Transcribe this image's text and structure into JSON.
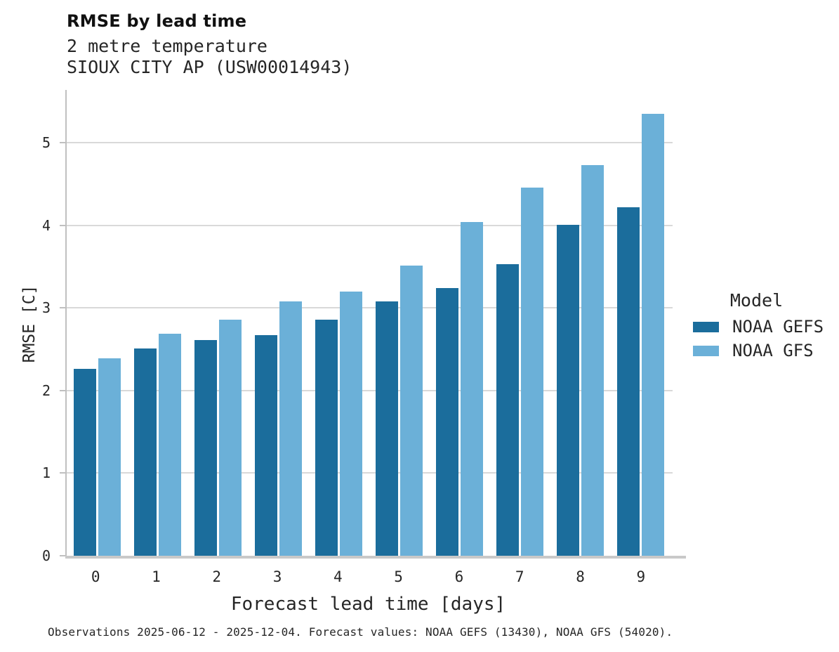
{
  "header": {
    "title": "RMSE by lead time",
    "subtitle_line1": "2 metre temperature",
    "subtitle_line2": "SIOUX CITY AP (USW00014943)"
  },
  "chart_data": {
    "type": "bar",
    "categories": [
      "0",
      "1",
      "2",
      "3",
      "4",
      "5",
      "6",
      "7",
      "8",
      "9"
    ],
    "series": [
      {
        "name": "NOAA GEFS",
        "color": "#1b6d9c",
        "values": [
          2.26,
          2.51,
          2.61,
          2.67,
          2.86,
          3.08,
          3.24,
          3.53,
          4.01,
          4.22
        ]
      },
      {
        "name": "NOAA GFS",
        "color": "#6bb0d8",
        "values": [
          2.39,
          2.69,
          2.86,
          3.08,
          3.2,
          3.51,
          4.04,
          4.46,
          4.73,
          5.35
        ]
      }
    ],
    "title": "RMSE by lead time",
    "subtitle": "2 metre temperature — SIOUX CITY AP (USW00014943)",
    "xlabel": "Forecast lead time [days]",
    "ylabel": "RMSE [C]",
    "ylim": [
      0,
      5.64
    ],
    "yticks": [
      0,
      1,
      2,
      3,
      4,
      5
    ],
    "grid": true,
    "legend_position": "right-center"
  },
  "legend": {
    "title": "Model",
    "entries": [
      {
        "label": "NOAA GEFS",
        "color": "#1b6d9c"
      },
      {
        "label": "NOAA GFS",
        "color": "#6bb0d8"
      }
    ]
  },
  "footer": {
    "caption": "Observations 2025-06-12 - 2025-12-04. Forecast values: NOAA GEFS (13430), NOAA GFS (54020)."
  },
  "colors": {
    "gefs_dark_blue": "#1b6d9c",
    "gfs_light_blue": "#6bb0d8",
    "gridline": "#d9d9d9",
    "axis_spine": "#c0c0c0",
    "baseline": "#c9c9c9",
    "text": "#262626"
  }
}
